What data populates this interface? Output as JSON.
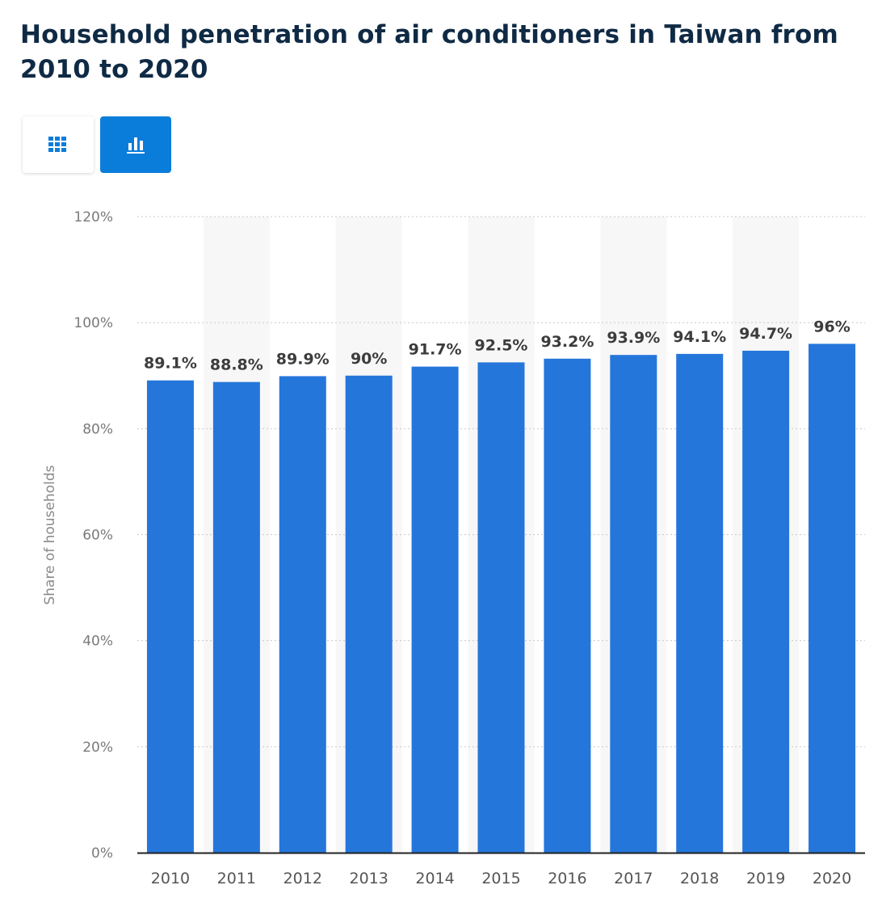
{
  "title": "Household penetration of air conditioners in Taiwan from 2010 to 2020",
  "toolbar": {
    "table_icon": "table-grid-icon",
    "chart_icon": "bar-chart-icon",
    "active": "chart"
  },
  "colors": {
    "bar": "#2576db",
    "title": "#0f2a44",
    "active_button": "#0a7ddb",
    "stripe": "#f7f7f7"
  },
  "chart_data": {
    "type": "bar",
    "title": "Household penetration of air conditioners in Taiwan from 2010 to 2020",
    "xlabel": "",
    "ylabel": "Share of households",
    "categories": [
      "2010",
      "2011",
      "2012",
      "2013",
      "2014",
      "2015",
      "2016",
      "2017",
      "2018",
      "2019",
      "2020"
    ],
    "values": [
      89.1,
      88.8,
      89.9,
      90,
      91.7,
      92.5,
      93.2,
      93.9,
      94.1,
      94.7,
      96
    ],
    "value_labels": [
      "89.1%",
      "88.8%",
      "89.9%",
      "90%",
      "91.7%",
      "92.5%",
      "93.2%",
      "93.9%",
      "94.1%",
      "94.7%",
      "96%"
    ],
    "ylim": [
      0,
      120
    ],
    "yticks": [
      0,
      20,
      40,
      60,
      80,
      100,
      120
    ],
    "ytick_labels": [
      "0%",
      "20%",
      "40%",
      "60%",
      "80%",
      "100%",
      "120%"
    ],
    "grid": true,
    "legend": "none"
  }
}
